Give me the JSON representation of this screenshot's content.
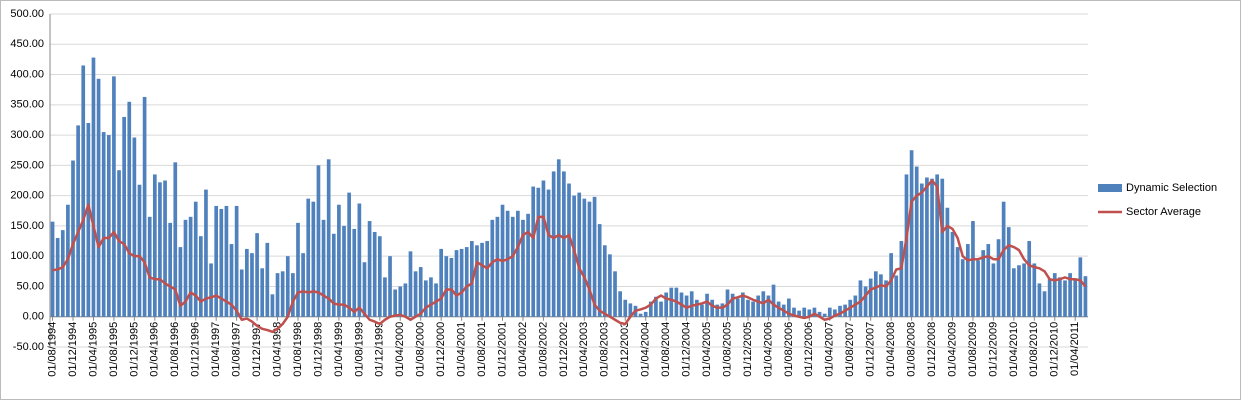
{
  "chart_data": {
    "type": "bar_line",
    "categories": [
      "01/08/1994",
      null,
      null,
      null,
      "01/12/1994",
      null,
      null,
      null,
      "01/04/1995",
      null,
      null,
      null,
      "01/08/1995",
      null,
      null,
      null,
      "01/12/1995",
      null,
      null,
      null,
      "01/04/1996",
      null,
      null,
      null,
      "01/08/1996",
      null,
      null,
      null,
      "01/12/1996",
      null,
      null,
      null,
      "01/04/1997",
      null,
      null,
      null,
      "01/08/1997",
      null,
      null,
      null,
      "01/12/1997",
      null,
      null,
      null,
      "01/04/1998",
      null,
      null,
      null,
      "01/08/1998",
      null,
      null,
      null,
      "01/12/1998",
      null,
      null,
      null,
      "01/04/1999",
      null,
      null,
      null,
      "01/08/1999",
      null,
      null,
      null,
      "01/12/1999",
      null,
      null,
      null,
      "01/04/2000",
      null,
      null,
      null,
      "01/08/2000",
      null,
      null,
      null,
      "01/12/2000",
      null,
      null,
      null,
      "01/04/2001",
      null,
      null,
      null,
      "01/08/2001",
      null,
      null,
      null,
      "01/12/2001",
      null,
      null,
      null,
      "01/04/2002",
      null,
      null,
      null,
      "01/08/2002",
      null,
      null,
      null,
      "01/12/2002",
      null,
      null,
      null,
      "01/04/2003",
      null,
      null,
      null,
      "01/08/2003",
      null,
      null,
      null,
      "01/12/2003",
      null,
      null,
      null,
      "01/04/2004",
      null,
      null,
      null,
      "01/08/2004",
      null,
      null,
      null,
      "01/12/2004",
      null,
      null,
      null,
      "01/04/2005",
      null,
      null,
      null,
      "01/08/2005",
      null,
      null,
      null,
      "01/12/2005",
      null,
      null,
      null,
      "01/04/2006",
      null,
      null,
      null,
      "01/08/2006",
      null,
      null,
      null,
      "01/12/2006",
      null,
      null,
      null,
      "01/04/2007",
      null,
      null,
      null,
      "01/08/2007",
      null,
      null,
      null,
      "01/12/2007",
      null,
      null,
      null,
      "01/04/2008",
      null,
      null,
      null,
      "01/08/2008",
      null,
      null,
      null,
      "01/12/2008",
      null,
      null,
      null,
      "01/04/2009",
      null,
      null,
      null,
      "01/08/2009",
      null,
      null,
      null,
      "01/12/2009",
      null,
      null,
      null,
      "01/04/2010",
      null,
      null,
      null,
      "01/08/2010",
      null,
      null,
      null,
      "01/12/2010",
      null,
      null,
      null,
      "01/04/2011",
      null,
      null
    ],
    "series": [
      {
        "name": "Dynamic Selection",
        "kind": "bar",
        "color": "#4f81bd",
        "values": [
          157,
          130,
          143,
          185,
          258,
          316,
          415,
          320,
          428,
          393,
          305,
          300,
          397,
          242,
          330,
          355,
          296,
          218,
          363,
          165,
          235,
          222,
          225,
          155,
          255,
          115,
          160,
          165,
          190,
          133,
          210,
          88,
          183,
          178,
          183,
          120,
          183,
          78,
          112,
          105,
          138,
          80,
          122,
          37,
          72,
          75,
          100,
          72,
          155,
          105,
          195,
          190,
          250,
          160,
          260,
          137,
          185,
          150,
          205,
          145,
          187,
          90,
          158,
          140,
          133,
          65,
          100,
          45,
          50,
          55,
          108,
          75,
          82,
          60,
          65,
          55,
          112,
          100,
          97,
          110,
          112,
          115,
          125,
          118,
          122,
          125,
          160,
          165,
          185,
          175,
          165,
          175,
          160,
          170,
          215,
          213,
          225,
          210,
          240,
          260,
          240,
          220,
          200,
          205,
          195,
          190,
          198,
          153,
          118,
          103,
          75,
          42,
          28,
          22,
          18,
          5,
          8,
          25,
          33,
          25,
          40,
          48,
          48,
          40,
          35,
          42,
          28,
          20,
          38,
          28,
          20,
          22,
          45,
          38,
          30,
          40,
          28,
          25,
          35,
          42,
          35,
          53,
          25,
          20,
          30,
          15,
          10,
          15,
          12,
          15,
          8,
          5,
          15,
          12,
          18,
          20,
          28,
          35,
          60,
          50,
          63,
          75,
          70,
          60,
          105,
          68,
          125,
          235,
          275,
          248,
          220,
          230,
          228,
          235,
          228,
          180,
          140,
          115,
          95,
          120,
          158,
          93,
          110,
          120,
          88,
          128,
          190,
          148,
          80,
          85,
          88,
          125,
          88,
          55,
          42,
          63,
          72,
          65,
          60,
          72,
          62,
          98,
          67
        ]
      },
      {
        "name": "Sector Average",
        "kind": "line",
        "color": "#c0504d",
        "values": [
          77,
          78,
          82,
          95,
          120,
          140,
          160,
          185,
          150,
          115,
          130,
          130,
          140,
          125,
          120,
          105,
          100,
          100,
          90,
          65,
          62,
          62,
          55,
          50,
          45,
          18,
          25,
          40,
          35,
          25,
          30,
          32,
          35,
          30,
          25,
          20,
          10,
          -5,
          -3,
          -8,
          -15,
          -20,
          -22,
          -25,
          -20,
          -12,
          0,
          25,
          40,
          42,
          40,
          42,
          40,
          35,
          30,
          22,
          20,
          20,
          15,
          8,
          15,
          5,
          -5,
          -8,
          -12,
          -5,
          0,
          2,
          3,
          0,
          -5,
          0,
          5,
          15,
          20,
          25,
          30,
          45,
          45,
          35,
          40,
          50,
          55,
          90,
          85,
          80,
          90,
          95,
          92,
          95,
          100,
          115,
          135,
          140,
          130,
          165,
          165,
          135,
          130,
          135,
          130,
          135,
          110,
          80,
          65,
          45,
          20,
          10,
          5,
          0,
          -5,
          -10,
          -12,
          0,
          10,
          12,
          15,
          20,
          30,
          35,
          30,
          28,
          25,
          20,
          15,
          18,
          20,
          22,
          25,
          18,
          15,
          15,
          20,
          30,
          32,
          35,
          32,
          28,
          25,
          22,
          28,
          20,
          15,
          10,
          5,
          2,
          0,
          -2,
          0,
          5,
          0,
          -5,
          -3,
          2,
          5,
          10,
          15,
          20,
          25,
          35,
          45,
          48,
          52,
          50,
          60,
          78,
          80,
          130,
          190,
          200,
          205,
          215,
          225,
          215,
          140,
          150,
          145,
          130,
          100,
          93,
          95,
          95,
          98,
          100,
          95,
          95,
          110,
          118,
          115,
          110,
          95,
          85,
          82,
          80,
          75,
          62,
          60,
          62,
          65,
          62,
          62,
          60,
          50
        ]
      }
    ],
    "ylim": [
      -50,
      500
    ],
    "yticks": [
      {
        "value": -50,
        "label": "-50.00"
      },
      {
        "value": 0,
        "label": "0.00"
      },
      {
        "value": 50,
        "label": "50.00"
      },
      {
        "value": 100,
        "label": "100.00"
      },
      {
        "value": 150,
        "label": "150.00"
      },
      {
        "value": 200,
        "label": "200.00"
      },
      {
        "value": 250,
        "label": "250.00"
      },
      {
        "value": 300,
        "label": "300.00"
      },
      {
        "value": 350,
        "label": "350.00"
      },
      {
        "value": 400,
        "label": "400.00"
      },
      {
        "value": 450,
        "label": "450.00"
      },
      {
        "value": 500,
        "label": "500.00"
      }
    ],
    "grid": true,
    "legend": "right"
  }
}
